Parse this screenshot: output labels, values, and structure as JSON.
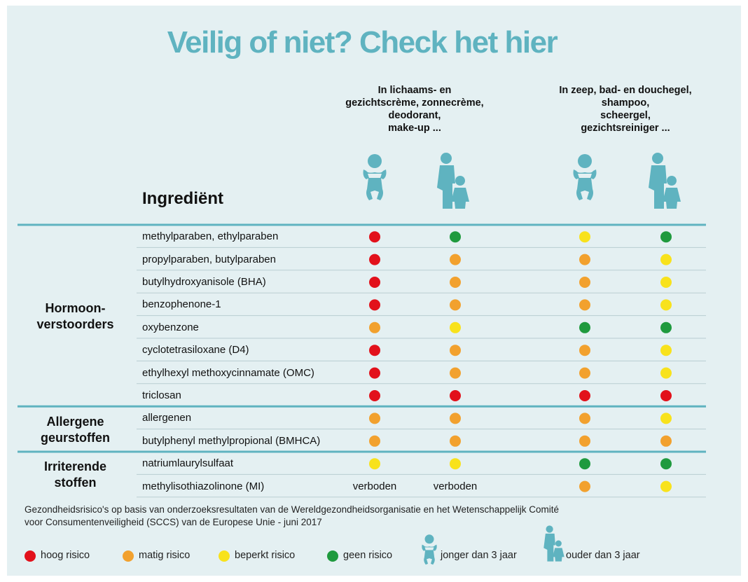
{
  "title": "Veilig of niet? Check het hier",
  "column_groups": [
    {
      "label": "In lichaams- en\ngezichtscrème, zonnecrème,\ndeodorant,\nmake-up ..."
    },
    {
      "label": "In zeep, bad- en douchegel,\nshampoo,\nscheergel,\ngezichtsreiniger ..."
    }
  ],
  "ingredient_header": "Ingrediënt",
  "groups": [
    {
      "label": "Hormoon-\nverstoorders",
      "rows": [
        {
          "name": "methylparaben, ethylparaben",
          "cells": [
            0,
            3,
            2,
            3
          ]
        },
        {
          "name": "propylparaben, butylparaben",
          "cells": [
            0,
            1,
            1,
            2
          ]
        },
        {
          "name": "butylhydroxyanisole (BHA)",
          "cells": [
            0,
            1,
            1,
            2
          ]
        },
        {
          "name": "benzophenone-1",
          "cells": [
            0,
            1,
            1,
            2
          ]
        },
        {
          "name": "oxybenzone",
          "cells": [
            1,
            2,
            3,
            3
          ]
        },
        {
          "name": "cyclotetrasiloxane (D4)",
          "cells": [
            0,
            1,
            1,
            2
          ]
        },
        {
          "name": "ethylhexyl methoxycinnamate (OMC)",
          "cells": [
            0,
            1,
            1,
            2
          ]
        },
        {
          "name": "triclosan",
          "cells": [
            0,
            0,
            0,
            0
          ]
        }
      ]
    },
    {
      "label": "Allergene\ngeurstoffen",
      "rows": [
        {
          "name": "allergenen",
          "cells": [
            1,
            1,
            1,
            2
          ]
        },
        {
          "name": "butylphenyl methylpropional (BMHCA)",
          "cells": [
            1,
            1,
            1,
            1
          ]
        }
      ]
    },
    {
      "label": "Irriterende\nstoffen",
      "rows": [
        {
          "name": "natriumlaurylsulfaat",
          "cells": [
            2,
            2,
            3,
            3
          ]
        },
        {
          "name": "methylisothiazolinone (MI)",
          "cells": [
            "verboden",
            "verboden",
            1,
            2
          ]
        }
      ]
    }
  ],
  "footnote": "Gezondheidsrisico's op basis van onderzoeksresultaten van de Wereldgezondheidsorganisatie en het Wetenschappelijk Comité\nvoor Consumentenveiligheid (SCCS) van de Europese Unie - juni 2017",
  "legend": {
    "risks": [
      {
        "label": "hoog risico",
        "color": "#e2111b"
      },
      {
        "label": "matig risico",
        "color": "#f2a12e"
      },
      {
        "label": "beperkt risico",
        "color": "#f8e21c"
      },
      {
        "label": "geen risico",
        "color": "#1f9a3e"
      }
    ],
    "ages": [
      "jonger dan 3 jaar",
      "ouder dan 3 jaar"
    ]
  }
}
